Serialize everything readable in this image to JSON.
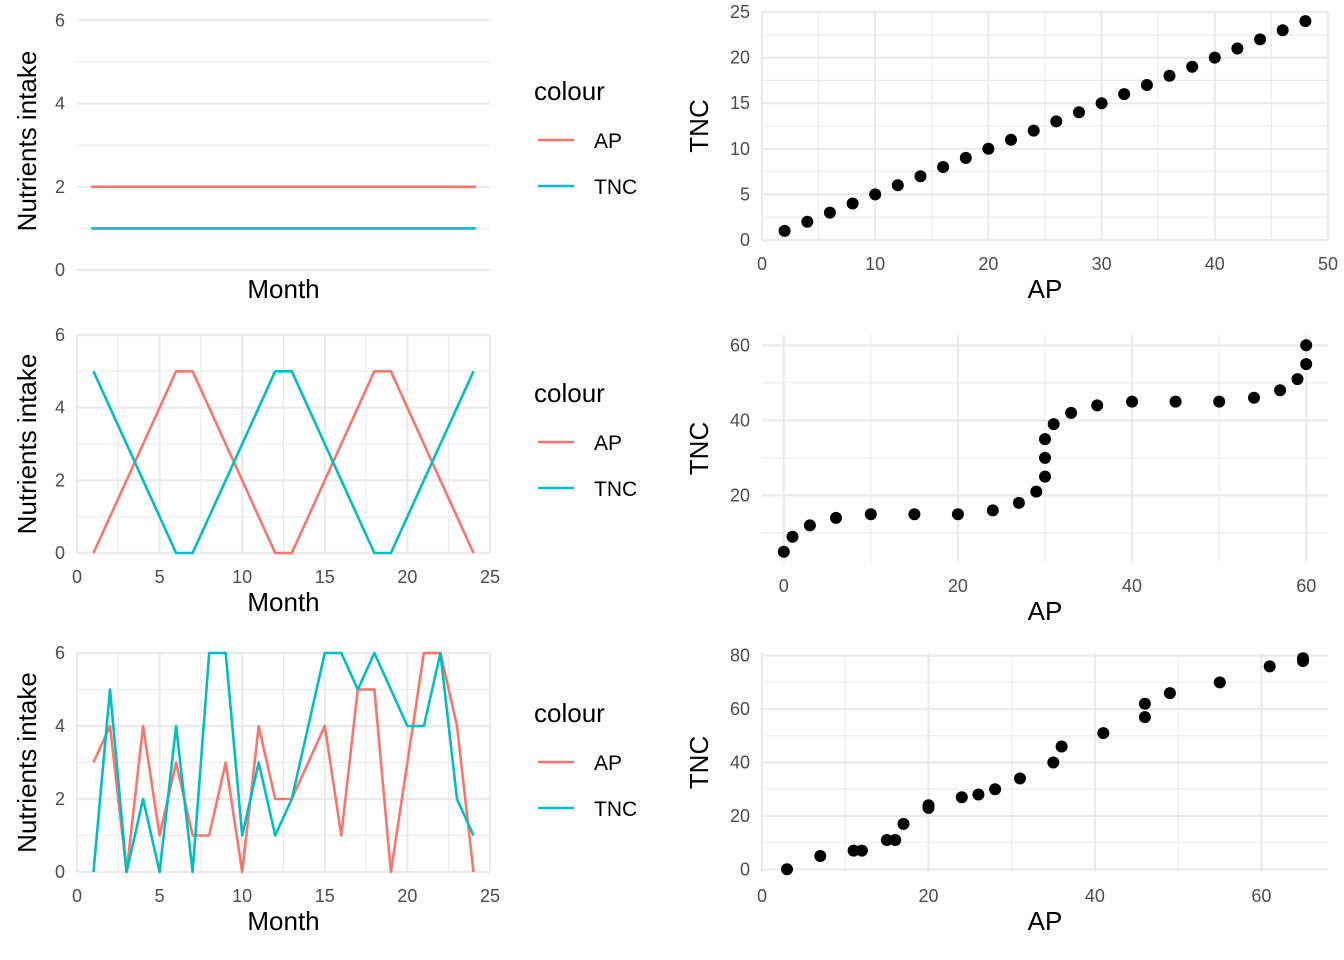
{
  "colors": {
    "AP": "#F8766D",
    "TNC": "#00BFC4",
    "point": "#000000",
    "grid": "#EBEBEB"
  },
  "chart_data": [
    {
      "type": "line",
      "xlabel": "Month",
      "ylabel": "Nutrients intake",
      "x_ticks_visible": false,
      "ylim": [
        0,
        6.2
      ],
      "y_ticks": [
        0,
        2,
        4,
        6
      ],
      "legend": {
        "title": "colour",
        "position": "right",
        "entries": [
          "AP",
          "TNC"
        ]
      },
      "x": [
        1,
        2,
        3,
        4,
        5,
        6,
        7,
        8,
        9,
        10,
        11,
        12,
        13,
        14,
        15,
        16,
        17,
        18,
        19,
        20,
        21,
        22,
        23,
        24
      ],
      "series": [
        {
          "name": "AP",
          "values": [
            2,
            2,
            2,
            2,
            2,
            2,
            2,
            2,
            2,
            2,
            2,
            2,
            2,
            2,
            2,
            2,
            2,
            2,
            2,
            2,
            2,
            2,
            2,
            2
          ]
        },
        {
          "name": "TNC",
          "values": [
            1,
            1,
            1,
            1,
            1,
            1,
            1,
            1,
            1,
            1,
            1,
            1,
            1,
            1,
            1,
            1,
            1,
            1,
            1,
            1,
            1,
            1,
            1,
            1
          ]
        }
      ]
    },
    {
      "type": "scatter",
      "xlabel": "AP",
      "ylabel": "TNC",
      "xlim": [
        0,
        50
      ],
      "ylim": [
        0,
        25
      ],
      "x_ticks": [
        0,
        10,
        20,
        30,
        40,
        50
      ],
      "y_ticks": [
        0,
        5,
        10,
        15,
        20,
        25
      ],
      "x": [
        2,
        4,
        6,
        8,
        10,
        12,
        14,
        16,
        18,
        20,
        22,
        24,
        26,
        28,
        30,
        32,
        34,
        36,
        38,
        40,
        42,
        44,
        46,
        48
      ],
      "y": [
        1,
        2,
        3,
        4,
        5,
        6,
        7,
        8,
        9,
        10,
        11,
        12,
        13,
        14,
        15,
        16,
        17,
        18,
        19,
        20,
        21,
        22,
        23,
        24
      ]
    },
    {
      "type": "line",
      "xlabel": "Month",
      "ylabel": "Nutrients intake",
      "xlim": [
        0,
        25
      ],
      "ylim": [
        0,
        6
      ],
      "x_ticks": [
        0,
        5,
        10,
        15,
        20,
        25
      ],
      "y_ticks": [
        0,
        2,
        4,
        6
      ],
      "legend": {
        "title": "colour",
        "position": "right",
        "entries": [
          "AP",
          "TNC"
        ]
      },
      "x": [
        1,
        2,
        3,
        4,
        5,
        6,
        7,
        8,
        9,
        10,
        11,
        12,
        13,
        14,
        15,
        16,
        17,
        18,
        19,
        20,
        21,
        22,
        23,
        24
      ],
      "series": [
        {
          "name": "AP",
          "values": [
            0,
            1,
            2,
            3,
            4,
            5,
            5,
            4,
            3,
            2,
            1,
            0,
            0,
            1,
            2,
            3,
            4,
            5,
            5,
            4,
            3,
            2,
            1,
            0
          ]
        },
        {
          "name": "TNC",
          "values": [
            5,
            4,
            3,
            2,
            1,
            0,
            0,
            1,
            2,
            3,
            4,
            5,
            5,
            4,
            3,
            2,
            1,
            0,
            0,
            1,
            2,
            3,
            4,
            5
          ]
        }
      ]
    },
    {
      "type": "scatter",
      "xlabel": "AP",
      "ylabel": "TNC",
      "xlim": [
        -2.5,
        62.5
      ],
      "ylim": [
        2.25,
        62.75
      ],
      "x_ticks": [
        0,
        20,
        40,
        60
      ],
      "y_ticks": [
        20,
        40,
        60
      ],
      "x": [
        0,
        1,
        3,
        6,
        10,
        15,
        20,
        24,
        27,
        29,
        30,
        30,
        30,
        31,
        33,
        36,
        40,
        45,
        50,
        54,
        57,
        59,
        60,
        60
      ],
      "y": [
        5,
        9,
        12,
        14,
        15,
        15,
        15,
        16,
        18,
        21,
        25,
        30,
        35,
        39,
        42,
        44,
        45,
        45,
        45,
        46,
        48,
        51,
        55,
        60
      ]
    },
    {
      "type": "line",
      "xlabel": "Month",
      "ylabel": "Nutrients intake",
      "xlim": [
        0,
        25
      ],
      "ylim": [
        0,
        6
      ],
      "x_ticks": [
        0,
        5,
        10,
        15,
        20,
        25
      ],
      "y_ticks": [
        0,
        2,
        4,
        6
      ],
      "legend": {
        "title": "colour",
        "position": "right",
        "entries": [
          "AP",
          "TNC"
        ]
      },
      "x": [
        1,
        2,
        3,
        4,
        5,
        6,
        7,
        8,
        9,
        10,
        11,
        12,
        13,
        14,
        15,
        16,
        17,
        18,
        19,
        20,
        21,
        22,
        23,
        24
      ],
      "series": [
        {
          "name": "AP",
          "values": [
            3,
            4,
            0,
            4,
            1,
            3,
            1,
            1,
            3,
            0,
            4,
            2,
            2,
            3,
            4,
            1,
            5,
            5,
            0,
            3,
            6,
            6,
            4,
            0
          ]
        },
        {
          "name": "TNC",
          "values": [
            0,
            5,
            0,
            2,
            0,
            4,
            0,
            6,
            6,
            1,
            3,
            1,
            2,
            4,
            6,
            6,
            5,
            6,
            5,
            4,
            4,
            6,
            2,
            1
          ]
        }
      ]
    },
    {
      "type": "scatter",
      "xlabel": "AP",
      "ylabel": "TNC",
      "xlim": [
        0,
        68
      ],
      "ylim": [
        -1,
        81
      ],
      "x_ticks": [
        0,
        20,
        40,
        60
      ],
      "y_ticks": [
        0,
        20,
        40,
        60,
        80
      ],
      "x": [
        3,
        7,
        11,
        12,
        15,
        16,
        17,
        20,
        20,
        24,
        26,
        28,
        31,
        35,
        36,
        41,
        46,
        46,
        49,
        55,
        61,
        65,
        65
      ],
      "y": [
        0,
        5,
        7,
        7,
        11,
        11,
        17,
        23,
        24,
        27,
        28,
        30,
        34,
        40,
        46,
        51,
        57,
        62,
        66,
        70,
        76,
        78,
        79
      ]
    }
  ]
}
